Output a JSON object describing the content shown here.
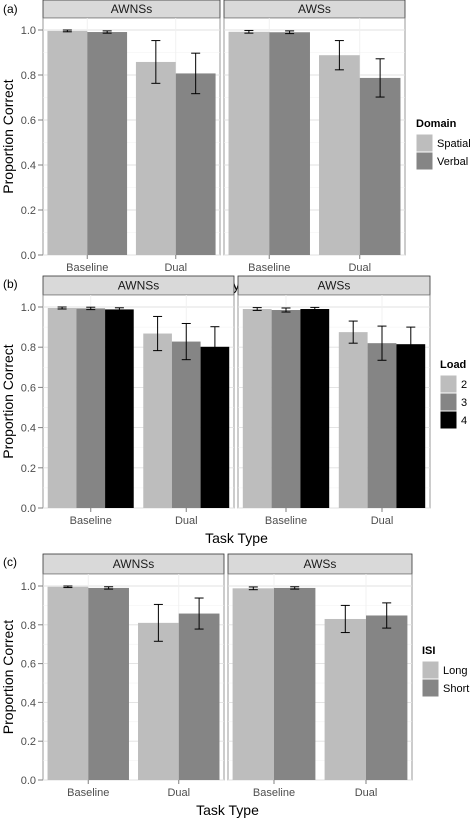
{
  "chart_data": [
    {
      "panel_label": "(a)",
      "type": "bar",
      "facets": [
        "AWNSs",
        "AWSs"
      ],
      "categories": [
        "Baseline",
        "Dual"
      ],
      "xlabel": "Task Type",
      "ylabel": "Proportion Correct",
      "ylim": [
        0,
        1.0
      ],
      "yticks": [
        "0.0",
        "0.2",
        "0.4",
        "0.6",
        "0.8",
        "1.0"
      ],
      "legend": {
        "title": "Domain",
        "placement": "right"
      },
      "series": [
        {
          "name": "Spatial",
          "color": "#bdbdbd",
          "values": {
            "AWNSs": [
              0.996,
              0.858
            ],
            "AWSs": [
              0.992,
              0.888
            ]
          },
          "errors": {
            "AWNSs": [
              0.004,
              0.095
            ],
            "AWSs": [
              0.006,
              0.065
            ]
          }
        },
        {
          "name": "Verbal",
          "color": "#858585",
          "values": {
            "AWNSs": [
              0.991,
              0.807
            ],
            "AWSs": [
              0.99,
              0.787
            ]
          },
          "errors": {
            "AWNSs": [
              0.005,
              0.09
            ],
            "AWSs": [
              0.006,
              0.085
            ]
          }
        }
      ]
    },
    {
      "panel_label": "(b)",
      "type": "bar",
      "facets": [
        "AWNSs",
        "AWSs"
      ],
      "categories": [
        "Baseline",
        "Dual"
      ],
      "xlabel": "Task Type",
      "ylabel": "Proportion Correct",
      "ylim": [
        0,
        1.0
      ],
      "yticks": [
        "0.0",
        "0.2",
        "0.4",
        "0.6",
        "0.8",
        "1.0"
      ],
      "legend": {
        "title": "Load",
        "placement": "right"
      },
      "series": [
        {
          "name": "2",
          "color": "#bdbdbd",
          "values": {
            "AWNSs": [
              0.995,
              0.868
            ],
            "AWSs": [
              0.99,
              0.875
            ]
          },
          "errors": {
            "AWNSs": [
              0.005,
              0.085
            ],
            "AWSs": [
              0.007,
              0.055
            ]
          }
        },
        {
          "name": "3",
          "color": "#858585",
          "values": {
            "AWNSs": [
              0.993,
              0.828
            ],
            "AWSs": [
              0.985,
              0.82
            ]
          },
          "errors": {
            "AWNSs": [
              0.006,
              0.09
            ],
            "AWSs": [
              0.01,
              0.085
            ]
          }
        },
        {
          "name": "4",
          "color": "#000000",
          "values": {
            "AWNSs": [
              0.988,
              0.802
            ],
            "AWSs": [
              0.99,
              0.815
            ]
          },
          "errors": {
            "AWNSs": [
              0.008,
              0.1
            ],
            "AWSs": [
              0.008,
              0.085
            ]
          }
        }
      ]
    },
    {
      "panel_label": "(c)",
      "type": "bar",
      "facets": [
        "AWNSs",
        "AWSs"
      ],
      "categories": [
        "Baseline",
        "Dual"
      ],
      "xlabel": "Task Type",
      "ylabel": "Proportion Correct",
      "ylim": [
        0,
        1.0
      ],
      "yticks": [
        "0.0",
        "0.2",
        "0.4",
        "0.6",
        "0.8",
        "1.0"
      ],
      "legend": {
        "title": "ISI",
        "placement": "right"
      },
      "series": [
        {
          "name": "Long",
          "color": "#bdbdbd",
          "values": {
            "AWNSs": [
              0.996,
              0.81
            ],
            "AWSs": [
              0.988,
              0.83
            ]
          },
          "errors": {
            "AWNSs": [
              0.004,
              0.095
            ],
            "AWSs": [
              0.007,
              0.07
            ]
          }
        },
        {
          "name": "Short",
          "color": "#858585",
          "values": {
            "AWNSs": [
              0.99,
              0.858
            ],
            "AWSs": [
              0.99,
              0.848
            ]
          },
          "errors": {
            "AWNSs": [
              0.006,
              0.08
            ],
            "AWSs": [
              0.006,
              0.065
            ]
          }
        }
      ]
    }
  ]
}
